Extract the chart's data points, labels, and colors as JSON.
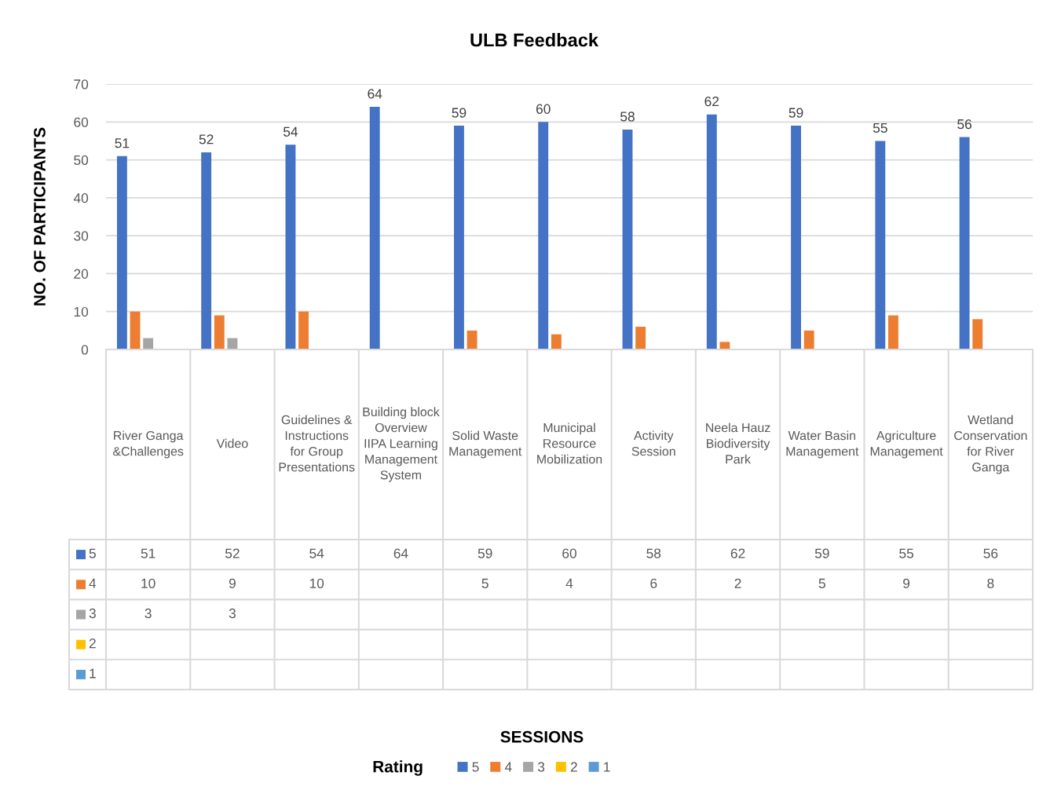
{
  "chart_data": {
    "type": "bar",
    "title": "ULB Feedback",
    "ylabel": "NO. OF PARTICIPANTS",
    "legend_title": "Rating",
    "categories": [
      "River Ganga &Challenges",
      "Video",
      "Guidelines & Instructions for Group Presentations",
      "Building block Overview IIPA Learning Management System",
      "Solid Waste Management",
      "Municipal Resource Mobilization",
      "Activity Session",
      "Neela Hauz Biodiversity Park",
      "Water Basin Management",
      "Agriculture Management",
      "Wetland Conservation for River Ganga"
    ],
    "series": [
      {
        "name": "5",
        "color": "#4472c4",
        "values": [
          51,
          52,
          54,
          64,
          59,
          60,
          58,
          62,
          59,
          55,
          56
        ]
      },
      {
        "name": "4",
        "color": "#ed7d31",
        "values": [
          10,
          9,
          10,
          null,
          5,
          4,
          6,
          2,
          5,
          9,
          8
        ]
      },
      {
        "name": "3",
        "color": "#a5a5a5",
        "values": [
          3,
          3,
          null,
          null,
          null,
          null,
          null,
          null,
          null,
          null,
          null
        ]
      },
      {
        "name": "2",
        "color": "#ffc000",
        "values": [
          null,
          null,
          null,
          null,
          null,
          null,
          null,
          null,
          null,
          null,
          null
        ]
      },
      {
        "name": "1",
        "color": "#5b9bd5",
        "values": [
          null,
          null,
          null,
          null,
          null,
          null,
          null,
          null,
          null,
          null,
          null
        ]
      }
    ],
    "annotations": [
      "51",
      "52",
      "54",
      "64",
      "59",
      "60",
      "58",
      "62",
      "59",
      "55",
      "56",
      "SESSIONS"
    ],
    "ylim": [
      0,
      70
    ],
    "yticks": [
      0,
      10,
      20,
      30,
      40,
      50,
      60,
      70
    ],
    "grid": "y",
    "legend": "bottom",
    "data_labels": true
  }
}
